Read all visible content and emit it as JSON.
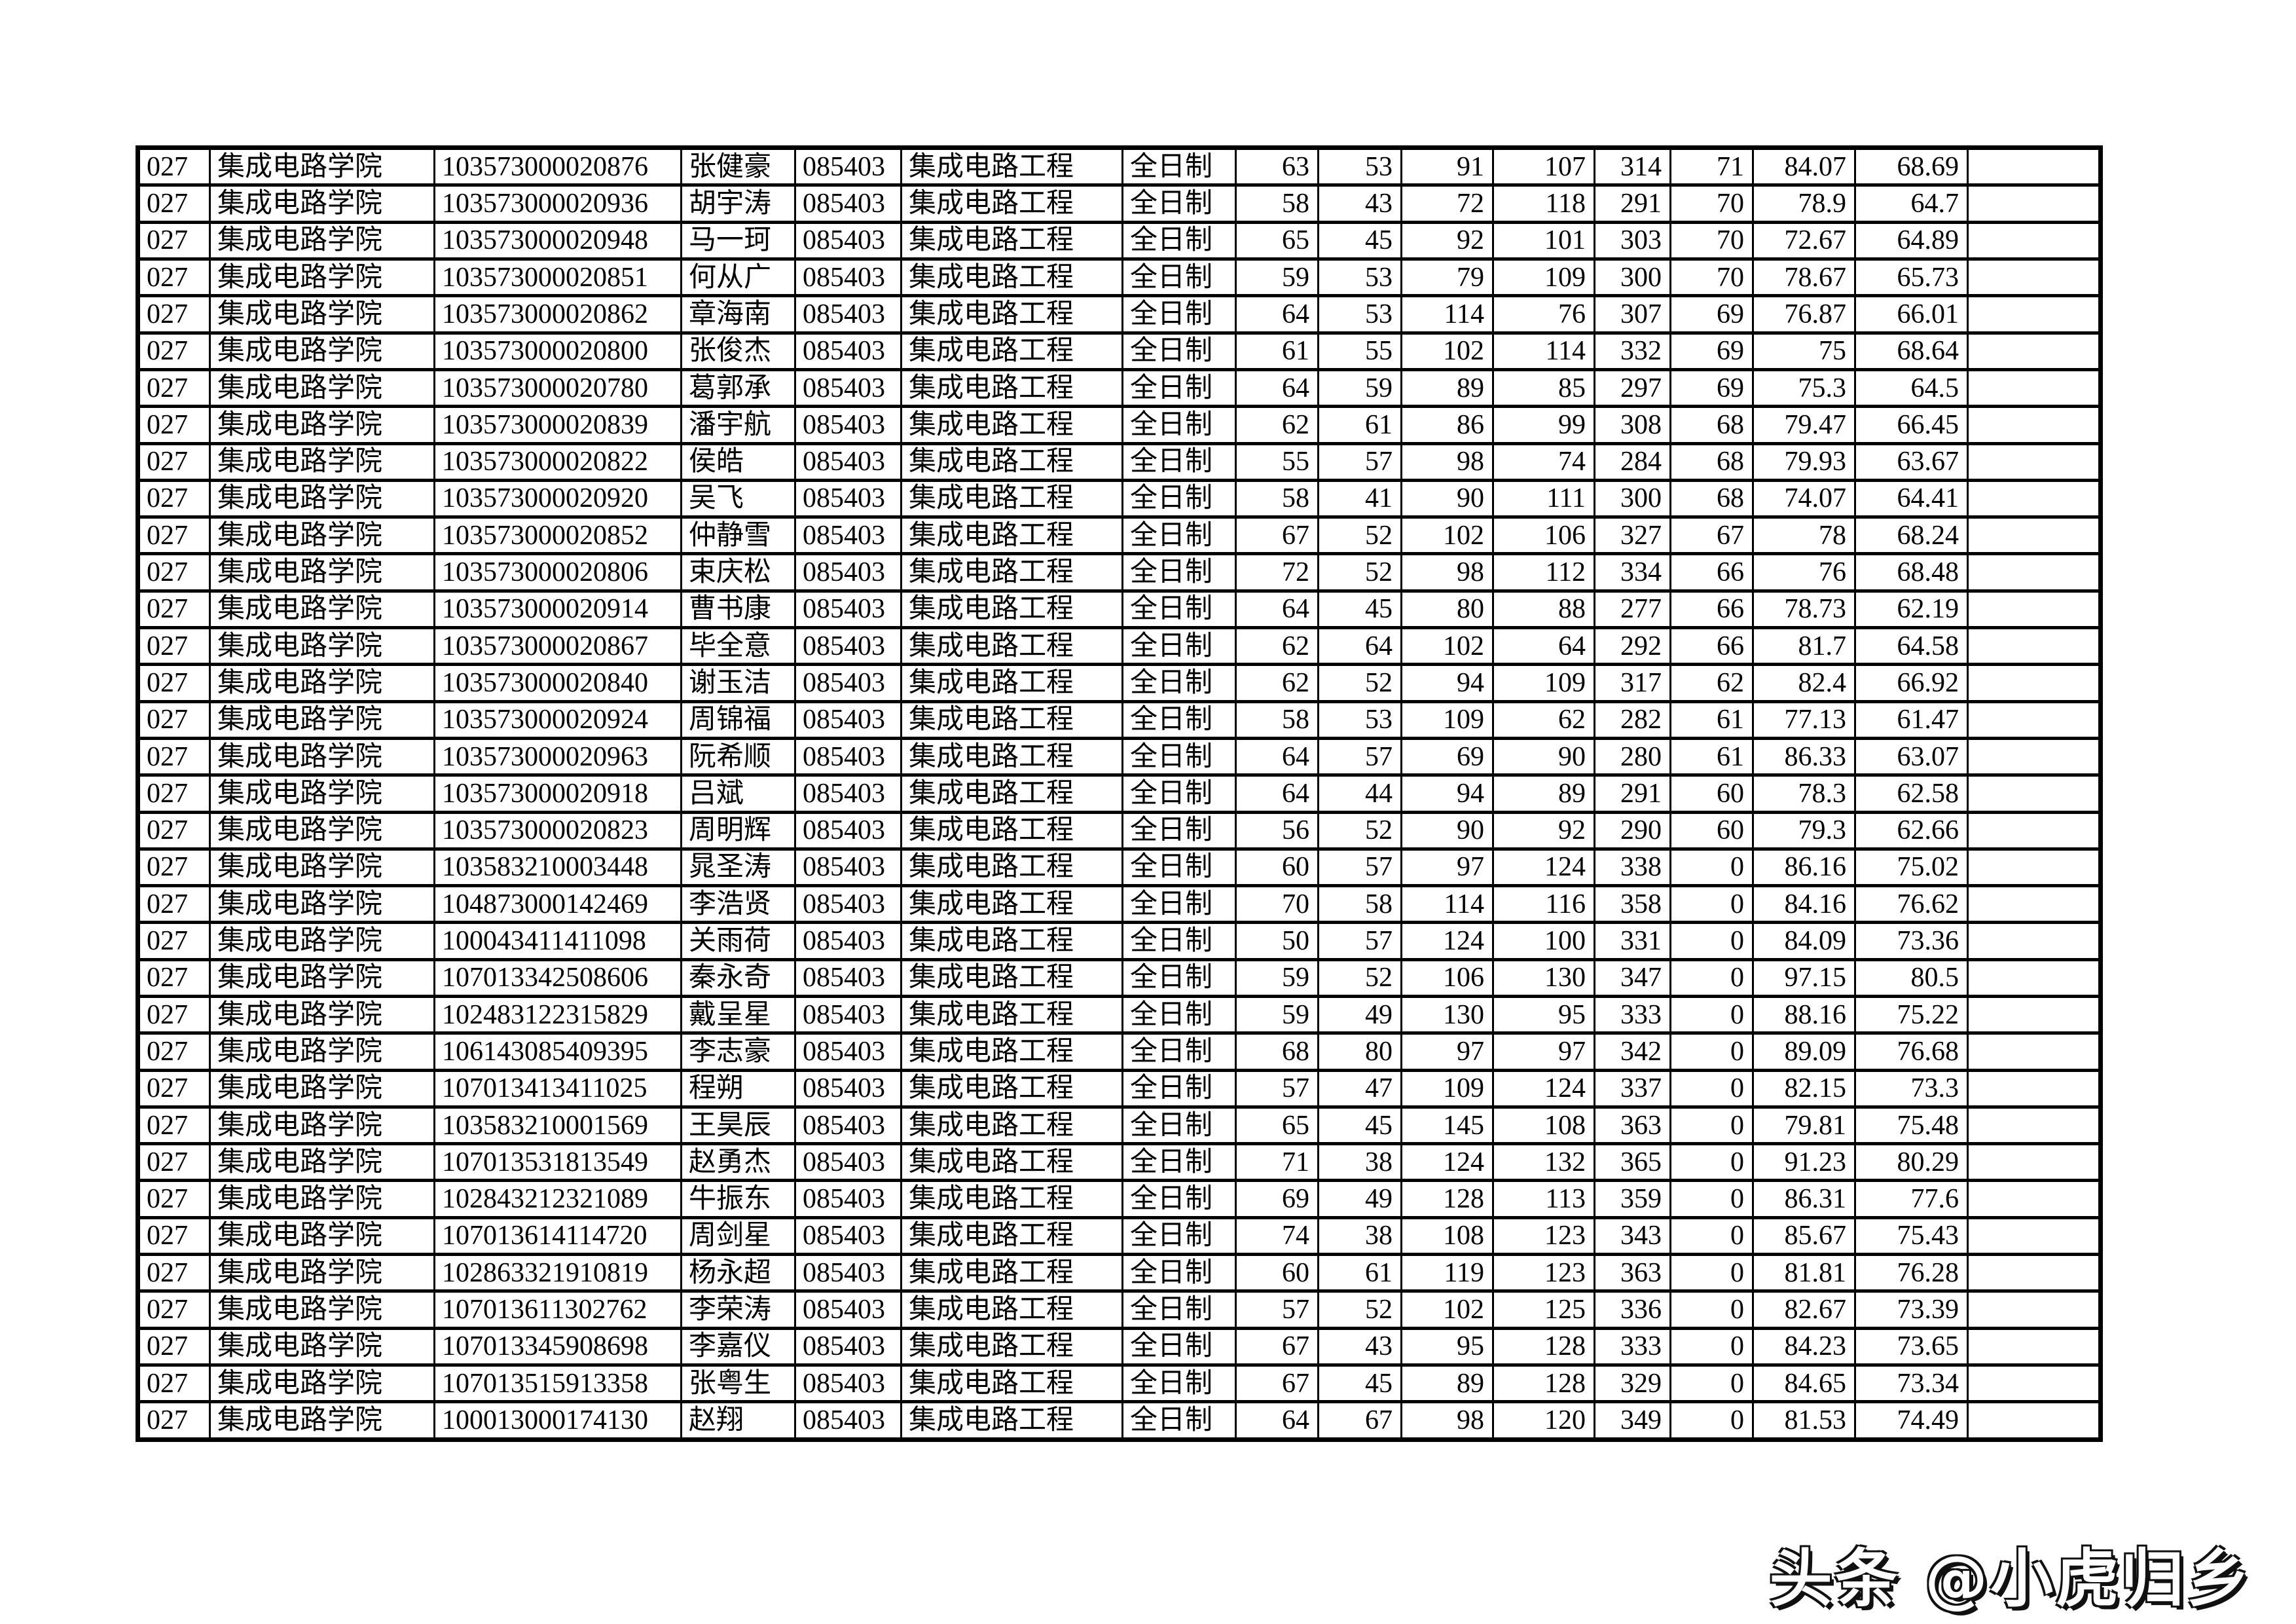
{
  "watermark": {
    "text": "头条 @小虎归乡"
  },
  "table": {
    "rows": [
      [
        "027",
        "集成电路学院",
        "103573000020876",
        "张健豪",
        "085403",
        "集成电路工程",
        "全日制",
        "63",
        "53",
        "91",
        "107",
        "314",
        "71",
        "84.07",
        "68.69",
        ""
      ],
      [
        "027",
        "集成电路学院",
        "103573000020936",
        "胡宇涛",
        "085403",
        "集成电路工程",
        "全日制",
        "58",
        "43",
        "72",
        "118",
        "291",
        "70",
        "78.9",
        "64.7",
        ""
      ],
      [
        "027",
        "集成电路学院",
        "103573000020948",
        "马一珂",
        "085403",
        "集成电路工程",
        "全日制",
        "65",
        "45",
        "92",
        "101",
        "303",
        "70",
        "72.67",
        "64.89",
        ""
      ],
      [
        "027",
        "集成电路学院",
        "103573000020851",
        "何从广",
        "085403",
        "集成电路工程",
        "全日制",
        "59",
        "53",
        "79",
        "109",
        "300",
        "70",
        "78.67",
        "65.73",
        ""
      ],
      [
        "027",
        "集成电路学院",
        "103573000020862",
        "章海南",
        "085403",
        "集成电路工程",
        "全日制",
        "64",
        "53",
        "114",
        "76",
        "307",
        "69",
        "76.87",
        "66.01",
        ""
      ],
      [
        "027",
        "集成电路学院",
        "103573000020800",
        "张俊杰",
        "085403",
        "集成电路工程",
        "全日制",
        "61",
        "55",
        "102",
        "114",
        "332",
        "69",
        "75",
        "68.64",
        ""
      ],
      [
        "027",
        "集成电路学院",
        "103573000020780",
        "葛郭承",
        "085403",
        "集成电路工程",
        "全日制",
        "64",
        "59",
        "89",
        "85",
        "297",
        "69",
        "75.3",
        "64.5",
        ""
      ],
      [
        "027",
        "集成电路学院",
        "103573000020839",
        "潘宇航",
        "085403",
        "集成电路工程",
        "全日制",
        "62",
        "61",
        "86",
        "99",
        "308",
        "68",
        "79.47",
        "66.45",
        ""
      ],
      [
        "027",
        "集成电路学院",
        "103573000020822",
        "侯皓",
        "085403",
        "集成电路工程",
        "全日制",
        "55",
        "57",
        "98",
        "74",
        "284",
        "68",
        "79.93",
        "63.67",
        ""
      ],
      [
        "027",
        "集成电路学院",
        "103573000020920",
        "吴飞",
        "085403",
        "集成电路工程",
        "全日制",
        "58",
        "41",
        "90",
        "111",
        "300",
        "68",
        "74.07",
        "64.41",
        ""
      ],
      [
        "027",
        "集成电路学院",
        "103573000020852",
        "仲静雪",
        "085403",
        "集成电路工程",
        "全日制",
        "67",
        "52",
        "102",
        "106",
        "327",
        "67",
        "78",
        "68.24",
        ""
      ],
      [
        "027",
        "集成电路学院",
        "103573000020806",
        "束庆松",
        "085403",
        "集成电路工程",
        "全日制",
        "72",
        "52",
        "98",
        "112",
        "334",
        "66",
        "76",
        "68.48",
        ""
      ],
      [
        "027",
        "集成电路学院",
        "103573000020914",
        "曹书康",
        "085403",
        "集成电路工程",
        "全日制",
        "64",
        "45",
        "80",
        "88",
        "277",
        "66",
        "78.73",
        "62.19",
        ""
      ],
      [
        "027",
        "集成电路学院",
        "103573000020867",
        "毕全意",
        "085403",
        "集成电路工程",
        "全日制",
        "62",
        "64",
        "102",
        "64",
        "292",
        "66",
        "81.7",
        "64.58",
        ""
      ],
      [
        "027",
        "集成电路学院",
        "103573000020840",
        "谢玉洁",
        "085403",
        "集成电路工程",
        "全日制",
        "62",
        "52",
        "94",
        "109",
        "317",
        "62",
        "82.4",
        "66.92",
        ""
      ],
      [
        "027",
        "集成电路学院",
        "103573000020924",
        "周锦福",
        "085403",
        "集成电路工程",
        "全日制",
        "58",
        "53",
        "109",
        "62",
        "282",
        "61",
        "77.13",
        "61.47",
        ""
      ],
      [
        "027",
        "集成电路学院",
        "103573000020963",
        "阮希顺",
        "085403",
        "集成电路工程",
        "全日制",
        "64",
        "57",
        "69",
        "90",
        "280",
        "61",
        "86.33",
        "63.07",
        ""
      ],
      [
        "027",
        "集成电路学院",
        "103573000020918",
        "吕斌",
        "085403",
        "集成电路工程",
        "全日制",
        "64",
        "44",
        "94",
        "89",
        "291",
        "60",
        "78.3",
        "62.58",
        ""
      ],
      [
        "027",
        "集成电路学院",
        "103573000020823",
        "周明辉",
        "085403",
        "集成电路工程",
        "全日制",
        "56",
        "52",
        "90",
        "92",
        "290",
        "60",
        "79.3",
        "62.66",
        ""
      ],
      [
        "027",
        "集成电路学院",
        "103583210003448",
        "晁圣涛",
        "085403",
        "集成电路工程",
        "全日制",
        "60",
        "57",
        "97",
        "124",
        "338",
        "0",
        "86.16",
        "75.02",
        ""
      ],
      [
        "027",
        "集成电路学院",
        "104873000142469",
        "李浩贤",
        "085403",
        "集成电路工程",
        "全日制",
        "70",
        "58",
        "114",
        "116",
        "358",
        "0",
        "84.16",
        "76.62",
        ""
      ],
      [
        "027",
        "集成电路学院",
        "100043411411098",
        "关雨荷",
        "085403",
        "集成电路工程",
        "全日制",
        "50",
        "57",
        "124",
        "100",
        "331",
        "0",
        "84.09",
        "73.36",
        ""
      ],
      [
        "027",
        "集成电路学院",
        "107013342508606",
        "秦永奇",
        "085403",
        "集成电路工程",
        "全日制",
        "59",
        "52",
        "106",
        "130",
        "347",
        "0",
        "97.15",
        "80.5",
        ""
      ],
      [
        "027",
        "集成电路学院",
        "102483122315829",
        "戴呈星",
        "085403",
        "集成电路工程",
        "全日制",
        "59",
        "49",
        "130",
        "95",
        "333",
        "0",
        "88.16",
        "75.22",
        ""
      ],
      [
        "027",
        "集成电路学院",
        "106143085409395",
        "李志豪",
        "085403",
        "集成电路工程",
        "全日制",
        "68",
        "80",
        "97",
        "97",
        "342",
        "0",
        "89.09",
        "76.68",
        ""
      ],
      [
        "027",
        "集成电路学院",
        "107013413411025",
        "程朔",
        "085403",
        "集成电路工程",
        "全日制",
        "57",
        "47",
        "109",
        "124",
        "337",
        "0",
        "82.15",
        "73.3",
        ""
      ],
      [
        "027",
        "集成电路学院",
        "103583210001569",
        "王昊辰",
        "085403",
        "集成电路工程",
        "全日制",
        "65",
        "45",
        "145",
        "108",
        "363",
        "0",
        "79.81",
        "75.48",
        ""
      ],
      [
        "027",
        "集成电路学院",
        "107013531813549",
        "赵勇杰",
        "085403",
        "集成电路工程",
        "全日制",
        "71",
        "38",
        "124",
        "132",
        "365",
        "0",
        "91.23",
        "80.29",
        ""
      ],
      [
        "027",
        "集成电路学院",
        "102843212321089",
        "牛振东",
        "085403",
        "集成电路工程",
        "全日制",
        "69",
        "49",
        "128",
        "113",
        "359",
        "0",
        "86.31",
        "77.6",
        ""
      ],
      [
        "027",
        "集成电路学院",
        "107013614114720",
        "周剑星",
        "085403",
        "集成电路工程",
        "全日制",
        "74",
        "38",
        "108",
        "123",
        "343",
        "0",
        "85.67",
        "75.43",
        ""
      ],
      [
        "027",
        "集成电路学院",
        "102863321910819",
        "杨永超",
        "085403",
        "集成电路工程",
        "全日制",
        "60",
        "61",
        "119",
        "123",
        "363",
        "0",
        "81.81",
        "76.28",
        ""
      ],
      [
        "027",
        "集成电路学院",
        "107013611302762",
        "李荣涛",
        "085403",
        "集成电路工程",
        "全日制",
        "57",
        "52",
        "102",
        "125",
        "336",
        "0",
        "82.67",
        "73.39",
        ""
      ],
      [
        "027",
        "集成电路学院",
        "107013345908698",
        "李嘉仪",
        "085403",
        "集成电路工程",
        "全日制",
        "67",
        "43",
        "95",
        "128",
        "333",
        "0",
        "84.23",
        "73.65",
        ""
      ],
      [
        "027",
        "集成电路学院",
        "107013515913358",
        "张粤生",
        "085403",
        "集成电路工程",
        "全日制",
        "67",
        "45",
        "89",
        "128",
        "329",
        "0",
        "84.65",
        "73.34",
        ""
      ],
      [
        "027",
        "集成电路学院",
        "100013000174130",
        "赵翔",
        "085403",
        "集成电路工程",
        "全日制",
        "64",
        "67",
        "98",
        "120",
        "349",
        "0",
        "81.53",
        "74.49",
        ""
      ]
    ]
  }
}
